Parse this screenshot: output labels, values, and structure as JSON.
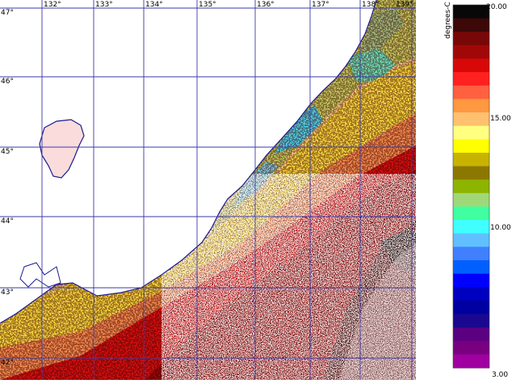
{
  "map": {
    "lon_labels": [
      "132°",
      "133°",
      "134°",
      "135°",
      "136°",
      "137°",
      "138°",
      "139°"
    ],
    "lat_labels": [
      "47°",
      "46°",
      "45°",
      "44°",
      "43°",
      "42°"
    ],
    "colors": {
      "grid": "#3a3aa8",
      "coast": "#1a1a90",
      "land": "#ffffff",
      "cloud": "#fadcdc"
    }
  },
  "colorbar": {
    "unit_label": "degrees-C",
    "tick_labels": [
      "20.00",
      "15.00",
      "10.00",
      "3.00"
    ],
    "colors": [
      "#080808",
      "#3c0808",
      "#780808",
      "#a00808",
      "#d80808",
      "#ff2020",
      "#ff6040",
      "#ff9840",
      "#ffc070",
      "#ffff80",
      "#ffff00",
      "#c8b400",
      "#8c7800",
      "#8cb400",
      "#a0d878",
      "#40ffa0",
      "#40ffff",
      "#60c0ff",
      "#4080ff",
      "#0060ff",
      "#0000ff",
      "#0000c0",
      "#0000a0",
      "#1a0890",
      "#5a0080",
      "#780080",
      "#a000a0"
    ]
  }
}
